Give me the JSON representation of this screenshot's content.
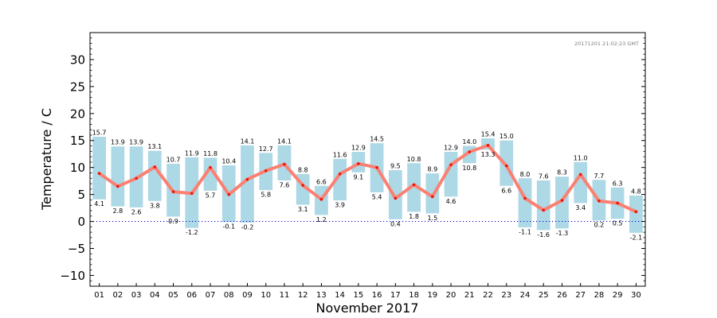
{
  "chart_data": {
    "type": "bar",
    "xlabel": "November 2017",
    "ylabel": "Temperature / C",
    "timestamp": "20171201 21:02:23 GMT",
    "ylim": [
      -12,
      35
    ],
    "yticks": [
      -10,
      -5,
      0,
      5,
      10,
      15,
      20,
      25,
      30
    ],
    "categories": [
      "01",
      "02",
      "03",
      "04",
      "05",
      "06",
      "07",
      "08",
      "09",
      "10",
      "11",
      "12",
      "13",
      "14",
      "15",
      "16",
      "17",
      "18",
      "19",
      "20",
      "21",
      "22",
      "23",
      "24",
      "25",
      "26",
      "27",
      "28",
      "29",
      "30"
    ],
    "series": [
      {
        "max": [
          15.7,
          13.9,
          13.9,
          13.1,
          10.7,
          11.9,
          11.8,
          10.4,
          14.1,
          12.7,
          14.1,
          8.8,
          6.6,
          11.6,
          12.9,
          14.5,
          9.5,
          10.8,
          8.9,
          12.9,
          14.0,
          15.4,
          15.0,
          8.0,
          7.6,
          8.3,
          11.0,
          7.7,
          6.3,
          4.8
        ],
        "min": [
          4.1,
          2.8,
          2.6,
          3.8,
          0.9,
          -1.2,
          5.7,
          -0.1,
          -0.2,
          5.8,
          7.6,
          3.1,
          1.2,
          3.9,
          9.1,
          5.4,
          0.4,
          1.8,
          1.5,
          4.6,
          10.8,
          13.3,
          6.6,
          -1.1,
          -1.6,
          -1.3,
          3.4,
          0.2,
          0.5,
          -2.1
        ],
        "mean": [
          8.9,
          6.5,
          8.0,
          10.1,
          5.5,
          5.2,
          10.0,
          5.0,
          7.8,
          9.4,
          10.6,
          6.7,
          4.1,
          8.8,
          10.7,
          10.0,
          4.3,
          6.8,
          4.6,
          10.5,
          12.9,
          14.1,
          10.3,
          4.3,
          2.1,
          3.9,
          8.7,
          3.8,
          3.4,
          1.8
        ]
      }
    ],
    "colors": {
      "bar": "#add8e6",
      "mean_line": "#fa8072",
      "mean_point": "#e8190a",
      "zero_line": "#0000cc",
      "timestamp": "#808080"
    },
    "grid": false
  }
}
